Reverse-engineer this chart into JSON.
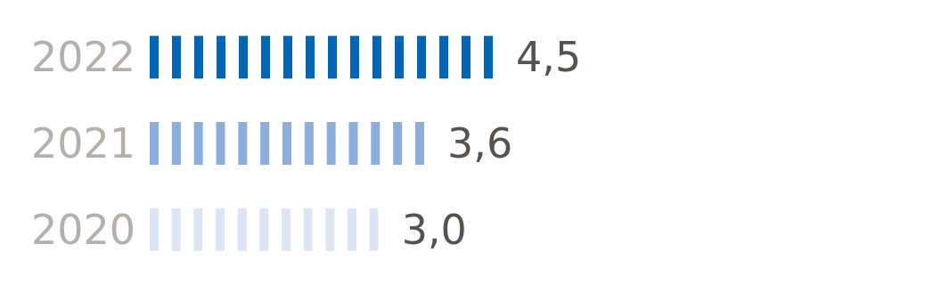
{
  "chart_data": {
    "type": "bar",
    "orientation": "horizontal",
    "categories": [
      "2022",
      "2021",
      "2020"
    ],
    "values": [
      4.5,
      3.6,
      3.0
    ],
    "colors": [
      "#0065b3",
      "#8daedd",
      "#dde4f3"
    ],
    "value_labels": [
      "4,5",
      "3,6",
      "3,0"
    ]
  }
}
